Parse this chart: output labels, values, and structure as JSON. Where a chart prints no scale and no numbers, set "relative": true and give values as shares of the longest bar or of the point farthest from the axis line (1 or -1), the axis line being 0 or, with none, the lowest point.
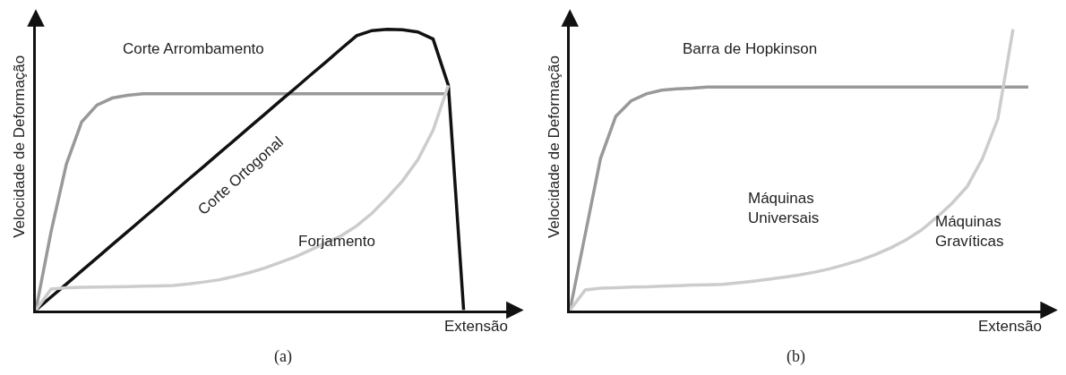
{
  "chart_data": [
    {
      "type": "line",
      "relative": true,
      "xlabel": "Extensão",
      "ylabel": "Velocidade de Deformação",
      "annotations": [
        "(a)"
      ],
      "categories": [
        null,
        null,
        null,
        null,
        null,
        null,
        null,
        null,
        null,
        null,
        null,
        null,
        null,
        null,
        null,
        null,
        null,
        null,
        null,
        null,
        null,
        null,
        null,
        null,
        null,
        null,
        null,
        null,
        null,
        null,
        null,
        null
      ],
      "series": [
        {
          "name": "Corte Arrombamento",
          "color": "#999999",
          "values": [
            0,
            0.28,
            0.52,
            0.67,
            0.73,
            0.755,
            0.765,
            0.77,
            0.77,
            0.77,
            0.77,
            0.77,
            0.77,
            0.77,
            0.77,
            0.77,
            0.77,
            0.77,
            0.77,
            0.77,
            0.77,
            0.77,
            0.77,
            0.77,
            0.77,
            0.77,
            0.77,
            0.77,
            null,
            null,
            null,
            null
          ]
        },
        {
          "name": "Corte Ortogonal",
          "color": "#111111",
          "values": [
            0,
            0.047,
            0.093,
            0.14,
            0.186,
            0.233,
            0.279,
            0.326,
            0.372,
            0.419,
            0.466,
            0.512,
            0.559,
            0.605,
            0.652,
            0.698,
            0.745,
            0.791,
            0.838,
            0.884,
            0.931,
            0.977,
            0.995,
            1.0,
            0.998,
            0.99,
            0.965,
            0.8,
            0,
            null,
            null,
            null
          ]
        },
        {
          "name": "Forjamento",
          "color": "#cccccc",
          "values": [
            0,
            0.075,
            0.08,
            0.081,
            0.082,
            0.083,
            0.084,
            0.085,
            0.086,
            0.088,
            0.093,
            0.1,
            0.108,
            0.12,
            0.134,
            0.15,
            0.17,
            0.19,
            0.215,
            0.24,
            0.265,
            0.3,
            0.345,
            0.4,
            0.46,
            0.535,
            0.64,
            0.8,
            null,
            null,
            null,
            null
          ]
        }
      ]
    },
    {
      "type": "line",
      "relative": true,
      "xlabel": "Extensão",
      "ylabel": "Velocidade de Deformação",
      "annotations": [
        "Máquinas\nUniversais",
        "Máquinas\nGravíticas",
        "(b)"
      ],
      "categories": [
        null,
        null,
        null,
        null,
        null,
        null,
        null,
        null,
        null,
        null,
        null,
        null,
        null,
        null,
        null,
        null,
        null,
        null,
        null,
        null,
        null,
        null,
        null,
        null,
        null,
        null,
        null,
        null,
        null,
        null,
        null,
        null
      ],
      "series": [
        {
          "name": "Barra de Hopkinson",
          "color": "#999999",
          "values": [
            0,
            0.27,
            0.54,
            0.69,
            0.745,
            0.77,
            0.783,
            0.788,
            0.79,
            0.794,
            0.794,
            0.794,
            0.794,
            0.794,
            0.794,
            0.794,
            0.794,
            0.794,
            0.794,
            0.794,
            0.794,
            0.794,
            0.794,
            0.794,
            0.794,
            0.794,
            0.794,
            0.794,
            0.794,
            0.794,
            0.794,
            null
          ]
        },
        {
          "color": "#cccccc",
          "values": [
            0,
            0.072,
            0.078,
            0.08,
            0.082,
            0.083,
            0.085,
            0.087,
            0.089,
            0.09,
            0.092,
            0.097,
            0.103,
            0.11,
            0.117,
            0.125,
            0.135,
            0.147,
            0.162,
            0.178,
            0.198,
            0.222,
            0.25,
            0.285,
            0.33,
            0.38,
            0.44,
            0.54,
            0.68,
            1.0,
            null,
            null
          ]
        }
      ]
    }
  ]
}
